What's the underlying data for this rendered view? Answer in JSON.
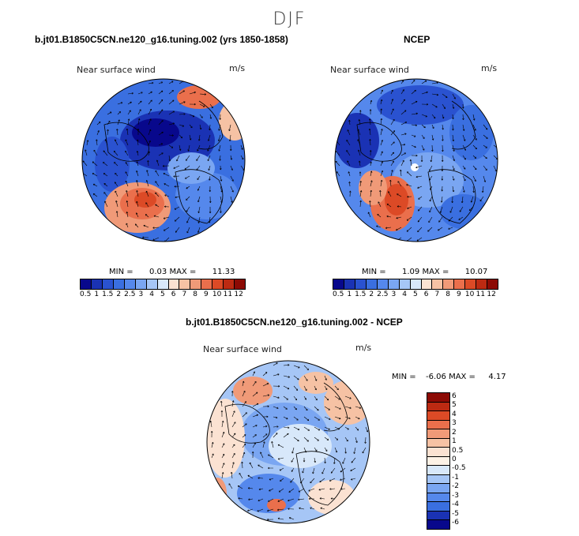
{
  "figure": {
    "season": "DJF"
  },
  "chart_data": [
    {
      "type": "heatmap",
      "projection": "polar-stereographic",
      "title": "b.jt01.B1850C5CN.ne120_g16.tuning.002 (yrs 1850-1858)",
      "subtitle": "Near surface wind",
      "units": "m/s",
      "min_label": "MIN =",
      "min": "0.03",
      "max_label": "MAX =",
      "max": "11.33",
      "colorbar_ticks": [
        "0.5",
        "1",
        "1.5",
        "2",
        "2.5",
        "3",
        "4",
        "5",
        "6",
        "7",
        "8",
        "9",
        "10",
        "11",
        "12"
      ]
    },
    {
      "type": "heatmap",
      "projection": "polar-stereographic",
      "title": "NCEP",
      "subtitle": "Near surface wind",
      "units": "m/s",
      "min_label": "MIN =",
      "min": "1.09",
      "max_label": "MAX =",
      "max": "10.07",
      "colorbar_ticks": [
        "0.5",
        "1",
        "1.5",
        "2",
        "2.5",
        "3",
        "4",
        "5",
        "6",
        "7",
        "8",
        "9",
        "10",
        "11",
        "12"
      ]
    },
    {
      "type": "heatmap",
      "projection": "polar-stereographic",
      "title": "b.jt01.B1850C5CN.ne120_g16.tuning.002 - NCEP",
      "subtitle": "Near surface wind",
      "units": "m/s",
      "min_label": "MIN =",
      "min": "-6.06",
      "max_label": "MAX =",
      "max": "4.17",
      "colorbar_ticks": [
        "6",
        "5",
        "4",
        "3",
        "2",
        "1",
        "0.5",
        "0",
        "-0.5",
        "-1",
        "-2",
        "-3",
        "-4",
        "-5",
        "-6"
      ]
    }
  ],
  "colors": {
    "speed_scale": [
      "#08088c",
      "#1a32b4",
      "#2a52d0",
      "#3a6fe0",
      "#5588ec",
      "#7aa6f2",
      "#a6c6f6",
      "#d8e8fa",
      "#fbe2d2",
      "#f6c2a4",
      "#f09a78",
      "#ea6f4c",
      "#dc4a26",
      "#bc2a12",
      "#8c0a04"
    ],
    "diff_scale": [
      "#8c0a04",
      "#bc2a12",
      "#dc4a26",
      "#ea6f4c",
      "#f09a78",
      "#f6c2a4",
      "#fbe2d2",
      "#fdf2e6",
      "#d8e8fa",
      "#a6c6f6",
      "#7aa6f2",
      "#5588ec",
      "#3a6fe0",
      "#1a32b4",
      "#08088c"
    ]
  }
}
